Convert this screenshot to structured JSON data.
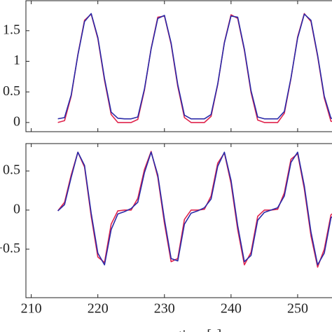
{
  "chart_data": [
    {
      "type": "line",
      "x": [
        214,
        215,
        216,
        217,
        218,
        219,
        220,
        221,
        222,
        223,
        224,
        225,
        226,
        227,
        228,
        229,
        230,
        231,
        232,
        233,
        234,
        235,
        236,
        237,
        238,
        239,
        240,
        241,
        242,
        243,
        244,
        245,
        246,
        247,
        248,
        249,
        250,
        251,
        252,
        253,
        254,
        255,
        256
      ],
      "series": [
        {
          "color": "#e0244c",
          "values": [
            0,
            0.03,
            0.43,
            1.11,
            1.67,
            1.77,
            1.37,
            0.69,
            0.13,
            0,
            0,
            0,
            0.05,
            0.53,
            1.21,
            1.72,
            1.74,
            1.28,
            0.59,
            0.08,
            0,
            0,
            0,
            0.1,
            0.62,
            1.31,
            1.76,
            1.7,
            1.18,
            0.49,
            0.04,
            0,
            0,
            0,
            0.15,
            0.72,
            1.4,
            1.78,
            1.65,
            1.08,
            0.4,
            0.02,
            0
          ]
        },
        {
          "color": "#2a2aa8",
          "values": [
            0.06,
            0.08,
            0.45,
            1.1,
            1.65,
            1.78,
            1.39,
            0.72,
            0.17,
            0.07,
            0.06,
            0.06,
            0.09,
            0.55,
            1.2,
            1.7,
            1.75,
            1.3,
            0.62,
            0.12,
            0.06,
            0.06,
            0.06,
            0.13,
            0.63,
            1.3,
            1.74,
            1.72,
            1.2,
            0.52,
            0.09,
            0.06,
            0.06,
            0.06,
            0.18,
            0.73,
            1.38,
            1.77,
            1.67,
            1.1,
            0.43,
            0.07,
            0.06
          ]
        }
      ],
      "xlim": [
        209.2,
        256.0
      ],
      "ylim": [
        -0.15,
        1.99
      ],
      "yticks": [
        0,
        {
          "value": 0.5,
          "label": "0.5"
        },
        1,
        {
          "value": 1.5,
          "label": "1.5"
        }
      ]
    },
    {
      "type": "line",
      "x": [
        214,
        215,
        216,
        217,
        218,
        219,
        220,
        221,
        222,
        223,
        224,
        225,
        226,
        227,
        228,
        229,
        230,
        231,
        232,
        233,
        234,
        235,
        236,
        237,
        238,
        239,
        240,
        241,
        242,
        243,
        244,
        245,
        246,
        247,
        248,
        249,
        250,
        251,
        252,
        253,
        254,
        255,
        256
      ],
      "series": [
        {
          "color": "#e0244c",
          "values": [
            -0.01,
            0.1,
            0.45,
            0.74,
            0.55,
            -0.08,
            -0.6,
            -0.67,
            -0.18,
            -0.01,
            0,
            0,
            0.15,
            0.52,
            0.75,
            0.42,
            -0.17,
            -0.66,
            -0.62,
            -0.12,
            0,
            0,
            0.01,
            0.18,
            0.6,
            0.73,
            0.34,
            -0.25,
            -0.7,
            -0.54,
            -0.08,
            0,
            0,
            0.01,
            0.22,
            0.65,
            0.72,
            0.27,
            -0.33,
            -0.73,
            -0.5,
            -0.06,
            0
          ]
        },
        {
          "color": "#2a2aa8",
          "values": [
            -0.01,
            0.07,
            0.42,
            0.74,
            0.57,
            -0.04,
            -0.55,
            -0.7,
            -0.25,
            -0.05,
            -0.02,
            0.02,
            0.1,
            0.48,
            0.74,
            0.45,
            -0.12,
            -0.62,
            -0.65,
            -0.18,
            -0.04,
            -0.01,
            0.03,
            0.14,
            0.56,
            0.74,
            0.38,
            -0.2,
            -0.66,
            -0.58,
            -0.13,
            -0.03,
            0,
            0.03,
            0.18,
            0.61,
            0.74,
            0.31,
            -0.28,
            -0.7,
            -0.55,
            -0.1,
            -0.02
          ]
        }
      ],
      "xlim": [
        209.2,
        256.0
      ],
      "ylim": [
        -1.12,
        0.85
      ],
      "yticks": [
        {
          "value": -0.5,
          "label": "−0.5"
        },
        0,
        {
          "value": 0.5,
          "label": "0.5"
        }
      ],
      "xticks": [
        210,
        220,
        230,
        240,
        250
      ],
      "xlabel": "time [s]"
    }
  ]
}
